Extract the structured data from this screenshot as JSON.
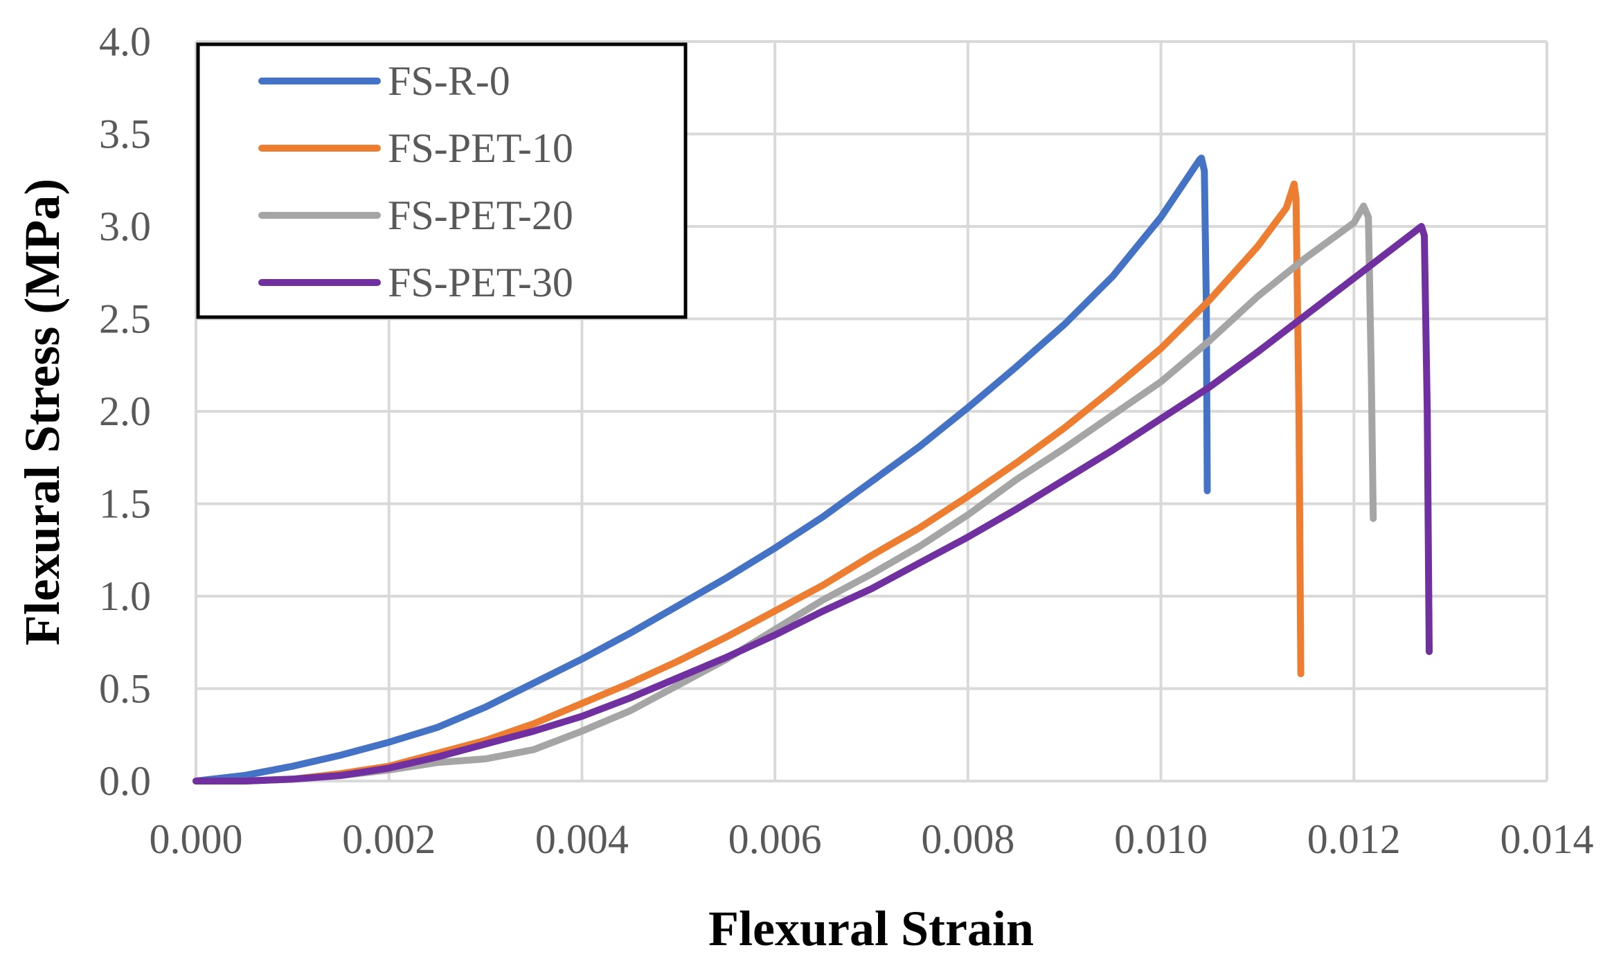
{
  "chart_data": {
    "type": "line",
    "title": "",
    "xlabel": "Flexural Strain",
    "ylabel": "Flexural Stress (MPa)",
    "xlim": [
      0,
      0.014
    ],
    "ylim": [
      0,
      4.0
    ],
    "xticks": [
      0,
      0.002,
      0.004,
      0.006,
      0.008,
      0.01,
      0.012,
      0.014
    ],
    "yticks": [
      0,
      0.5,
      1.0,
      1.5,
      2.0,
      2.5,
      3.0,
      3.5,
      4.0
    ],
    "x_tick_labels": [
      "0.000",
      "0.002",
      "0.004",
      "0.006",
      "0.008",
      "0.010",
      "0.012",
      "0.014"
    ],
    "y_tick_labels": [
      "0.0",
      "0.5",
      "1.0",
      "1.5",
      "2.0",
      "2.5",
      "3.0",
      "3.5",
      "4.0"
    ],
    "grid": true,
    "legend_position": "top-left",
    "series": [
      {
        "name": "FS-R-0",
        "color": "#4472C4",
        "x": [
          0,
          0.0005,
          0.001,
          0.0015,
          0.002,
          0.0025,
          0.003,
          0.0035,
          0.004,
          0.0045,
          0.005,
          0.0055,
          0.006,
          0.0065,
          0.007,
          0.0075,
          0.008,
          0.0085,
          0.009,
          0.0095,
          0.01,
          0.0104,
          0.01042,
          0.01045,
          0.01047,
          0.01048
        ],
        "y": [
          0,
          0.03,
          0.08,
          0.14,
          0.21,
          0.29,
          0.4,
          0.53,
          0.66,
          0.8,
          0.95,
          1.1,
          1.26,
          1.43,
          1.62,
          1.81,
          2.02,
          2.24,
          2.47,
          2.73,
          3.05,
          3.36,
          3.37,
          3.3,
          2.6,
          1.57
        ]
      },
      {
        "name": "FS-PET-10",
        "color": "#ED7D31",
        "x": [
          0,
          0.0005,
          0.001,
          0.0015,
          0.002,
          0.0025,
          0.003,
          0.0035,
          0.004,
          0.0045,
          0.005,
          0.0055,
          0.006,
          0.0065,
          0.007,
          0.0075,
          0.008,
          0.0085,
          0.009,
          0.0095,
          0.01,
          0.0105,
          0.011,
          0.0113,
          0.01138,
          0.0114,
          0.01143,
          0.01145
        ],
        "y": [
          0,
          0.0,
          0.01,
          0.04,
          0.08,
          0.15,
          0.22,
          0.31,
          0.42,
          0.53,
          0.65,
          0.78,
          0.92,
          1.06,
          1.22,
          1.37,
          1.54,
          1.72,
          1.91,
          2.12,
          2.34,
          2.6,
          2.89,
          3.1,
          3.23,
          3.15,
          2.0,
          0.58
        ]
      },
      {
        "name": "FS-PET-20",
        "color": "#A5A5A5",
        "x": [
          0,
          0.0005,
          0.001,
          0.0015,
          0.002,
          0.0025,
          0.003,
          0.0035,
          0.004,
          0.0045,
          0.005,
          0.0055,
          0.006,
          0.0065,
          0.007,
          0.0075,
          0.008,
          0.0085,
          0.009,
          0.0095,
          0.01,
          0.0105,
          0.011,
          0.0115,
          0.012,
          0.0121,
          0.01215,
          0.01218,
          0.0122
        ],
        "y": [
          0,
          0.0,
          0.01,
          0.03,
          0.06,
          0.1,
          0.12,
          0.17,
          0.27,
          0.38,
          0.52,
          0.66,
          0.82,
          0.98,
          1.12,
          1.27,
          1.44,
          1.63,
          1.8,
          1.98,
          2.16,
          2.38,
          2.62,
          2.83,
          3.02,
          3.11,
          3.05,
          2.2,
          1.42
        ]
      },
      {
        "name": "FS-PET-30",
        "color": "#7030A0",
        "x": [
          0,
          0.0005,
          0.001,
          0.0015,
          0.002,
          0.0025,
          0.003,
          0.0035,
          0.004,
          0.0045,
          0.005,
          0.0055,
          0.006,
          0.0065,
          0.007,
          0.0075,
          0.008,
          0.0085,
          0.009,
          0.0095,
          0.01,
          0.0105,
          0.011,
          0.0115,
          0.012,
          0.0125,
          0.0127,
          0.01273,
          0.01276,
          0.01278
        ],
        "y": [
          0,
          0.0,
          0.01,
          0.03,
          0.07,
          0.13,
          0.2,
          0.27,
          0.35,
          0.45,
          0.56,
          0.67,
          0.79,
          0.92,
          1.04,
          1.18,
          1.32,
          1.47,
          1.63,
          1.79,
          1.96,
          2.13,
          2.32,
          2.52,
          2.72,
          2.92,
          3.0,
          2.95,
          2.0,
          0.7
        ]
      }
    ]
  }
}
